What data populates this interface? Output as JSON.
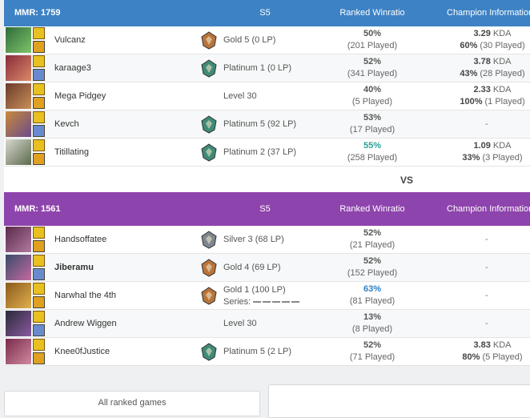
{
  "teams": [
    {
      "mmr": "MMR: 1759",
      "season": "S5",
      "winratio_header": "Ranked Winratio",
      "champ_header": "Champion Information",
      "players": [
        {
          "name": "Vulcanz",
          "rank": "Gold 5 (0 LP)",
          "emblem_color": "#b8743a",
          "winratio": "50%",
          "played": "(201 Played)",
          "kda": "3.29",
          "kda_unit": "KDA",
          "champ_winratio": "60%",
          "champ_played": "(30 Played)"
        },
        {
          "name": "karaage3",
          "rank": "Platinum 1 (0 LP)",
          "emblem_color": "#3f8a78",
          "winratio": "52%",
          "played": "(341 Played)",
          "kda": "3.78",
          "kda_unit": "KDA",
          "champ_winratio": "43%",
          "champ_played": "(28 Played)"
        },
        {
          "name": "Mega Pidgey",
          "rank": "Level 30",
          "winratio": "40%",
          "played": "(5 Played)",
          "kda": "2.33",
          "kda_unit": "KDA",
          "champ_winratio": "100%",
          "champ_played": "(1 Played)"
        },
        {
          "name": "Kevch",
          "rank": "Platinum 5 (92 LP)",
          "emblem_color": "#3f8a78",
          "winratio": "53%",
          "played": "(17 Played)",
          "champ_none": "-"
        },
        {
          "name": "Titillating",
          "rank": "Platinum 2 (37 LP)",
          "emblem_color": "#3f8a78",
          "winratio": "55%",
          "winratio_color": "#2aa198",
          "played": "(258 Played)",
          "kda": "1.09",
          "kda_unit": "KDA",
          "champ_winratio": "33%",
          "champ_played": "(3 Played)"
        }
      ]
    },
    {
      "mmr": "MMR: 1561",
      "season": "S5",
      "winratio_header": "Ranked Winratio",
      "champ_header": "Champion Information",
      "players": [
        {
          "name": "Handsoffatee",
          "rank": "Silver 3 (68 LP)",
          "emblem_color": "#7d8790",
          "winratio": "52%",
          "played": "(21 Played)",
          "champ_none": "-"
        },
        {
          "name": "Jiberamu",
          "bold": true,
          "rank": "Gold 4 (69 LP)",
          "emblem_color": "#b8743a",
          "winratio": "52%",
          "played": "(152 Played)",
          "champ_none": "-"
        },
        {
          "name": "Narwhal the 4th",
          "rank": "Gold 1 (100 LP)",
          "emblem_color": "#b8743a",
          "series": "Series:",
          "winratio": "63%",
          "winratio_color": "#2a7fc4",
          "played": "(81 Played)",
          "champ_none": "-"
        },
        {
          "name": "Andrew Wiggen",
          "rank": "Level 30",
          "winratio": "13%",
          "played": "(8 Played)",
          "champ_none": "-"
        },
        {
          "name": "Knee0fJustice",
          "rank": "Platinum 5 (2 LP)",
          "emblem_color": "#3f8a78",
          "winratio": "52%",
          "played": "(71 Played)",
          "kda": "3.83",
          "kda_unit": "KDA",
          "champ_winratio": "80%",
          "champ_played": "(5 Played)"
        }
      ]
    }
  ],
  "vs": "VS",
  "footer": {
    "all_games": "All ranked games"
  }
}
